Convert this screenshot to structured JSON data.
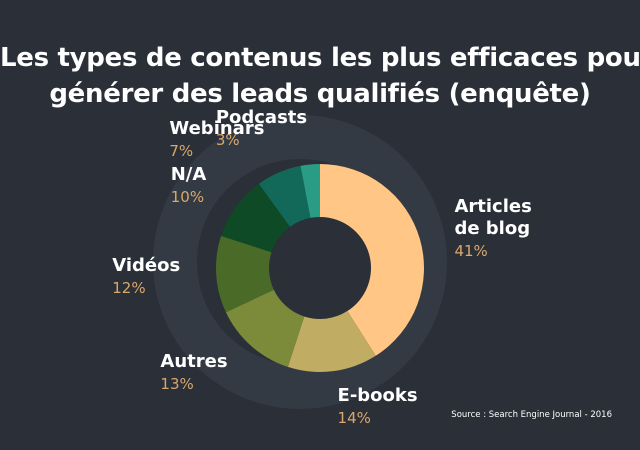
{
  "title_lines": [
    "Les types de contenus les plus efficaces pour",
    "générer des leads qualifiés (enquête)"
  ],
  "source": "Source : Search Engine Journal - 2016",
  "chart_data": {
    "type": "pie",
    "title": "Les types de contenus les plus efficaces pour générer des leads qualifiés (enquête)",
    "slices": [
      {
        "label": "Articles de blog",
        "label_lines": [
          "Articles",
          "de blog"
        ],
        "pct_label": "41%",
        "value": 41,
        "color": "#ffc685"
      },
      {
        "label": "E-books",
        "label_lines": [
          "E-books"
        ],
        "pct_label": "14%",
        "value": 14,
        "color": "#c0ac62"
      },
      {
        "label": "Autres",
        "label_lines": [
          "Autres"
        ],
        "pct_label": "13%",
        "value": 13,
        "color": "#7b8b3a"
      },
      {
        "label": "Vidéos",
        "label_lines": [
          "Vidéos"
        ],
        "pct_label": "12%",
        "value": 12,
        "color": "#4a6a28"
      },
      {
        "label": "N/A",
        "label_lines": [
          "N/A"
        ],
        "pct_label": "10%",
        "value": 10,
        "color": "#0f4a26"
      },
      {
        "label": "Webinars",
        "label_lines": [
          "Webinars"
        ],
        "pct_label": "7%",
        "value": 7,
        "color": "#12695a"
      },
      {
        "label": "Podcasts",
        "label_lines": [
          "Podcasts"
        ],
        "pct_label": "3%",
        "value": 3,
        "color": "#2a9b84"
      }
    ]
  }
}
